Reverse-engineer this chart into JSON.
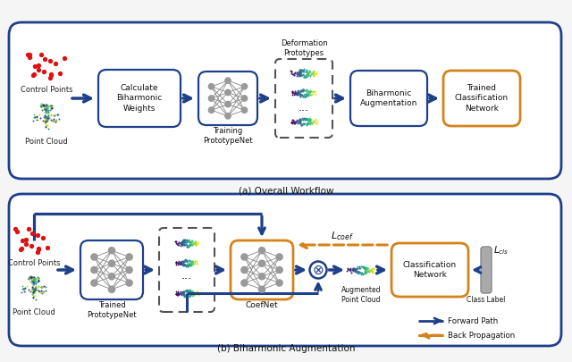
{
  "bg_color": "#f5f5f5",
  "blue": "#1e3f8a",
  "orange": "#d4821a",
  "dashed_c": "#555555",
  "arrow_blue": "#1e3f8a",
  "arrow_orange": "#d4821a",
  "node_color": "#999999",
  "red_dot": "#dd1111",
  "label_a": "(a) Overall Workflow",
  "label_b": "(b) Biharmonic Augmentation",
  "pa": {
    "ctrl_pts": "Control Points",
    "pt_cloud": "Point Cloud",
    "calc": "Calculate\nBiharmonic\nWeights",
    "training": "Training\nPrototypeNet",
    "deform": "Deformation\nPrototypes",
    "bih_aug": "Biharmonic\nAugmentation",
    "trained_cls": "Trained\nClassification\nNetwork"
  },
  "pb": {
    "ctrl_pts": "Control Points",
    "pt_cloud": "Point Cloud",
    "trained": "Trained\nPrototypeNet",
    "coefnet": "CoefNet",
    "aug_pc": "Augmented\nPoint Cloud",
    "cls": "Classification\nNetwork",
    "cls_label": "Class Label",
    "l_coef": "$L_{coef}$",
    "l_cls": "$L_{cls}$",
    "fwd": "Forward Path",
    "back": "Back Propagation"
  }
}
